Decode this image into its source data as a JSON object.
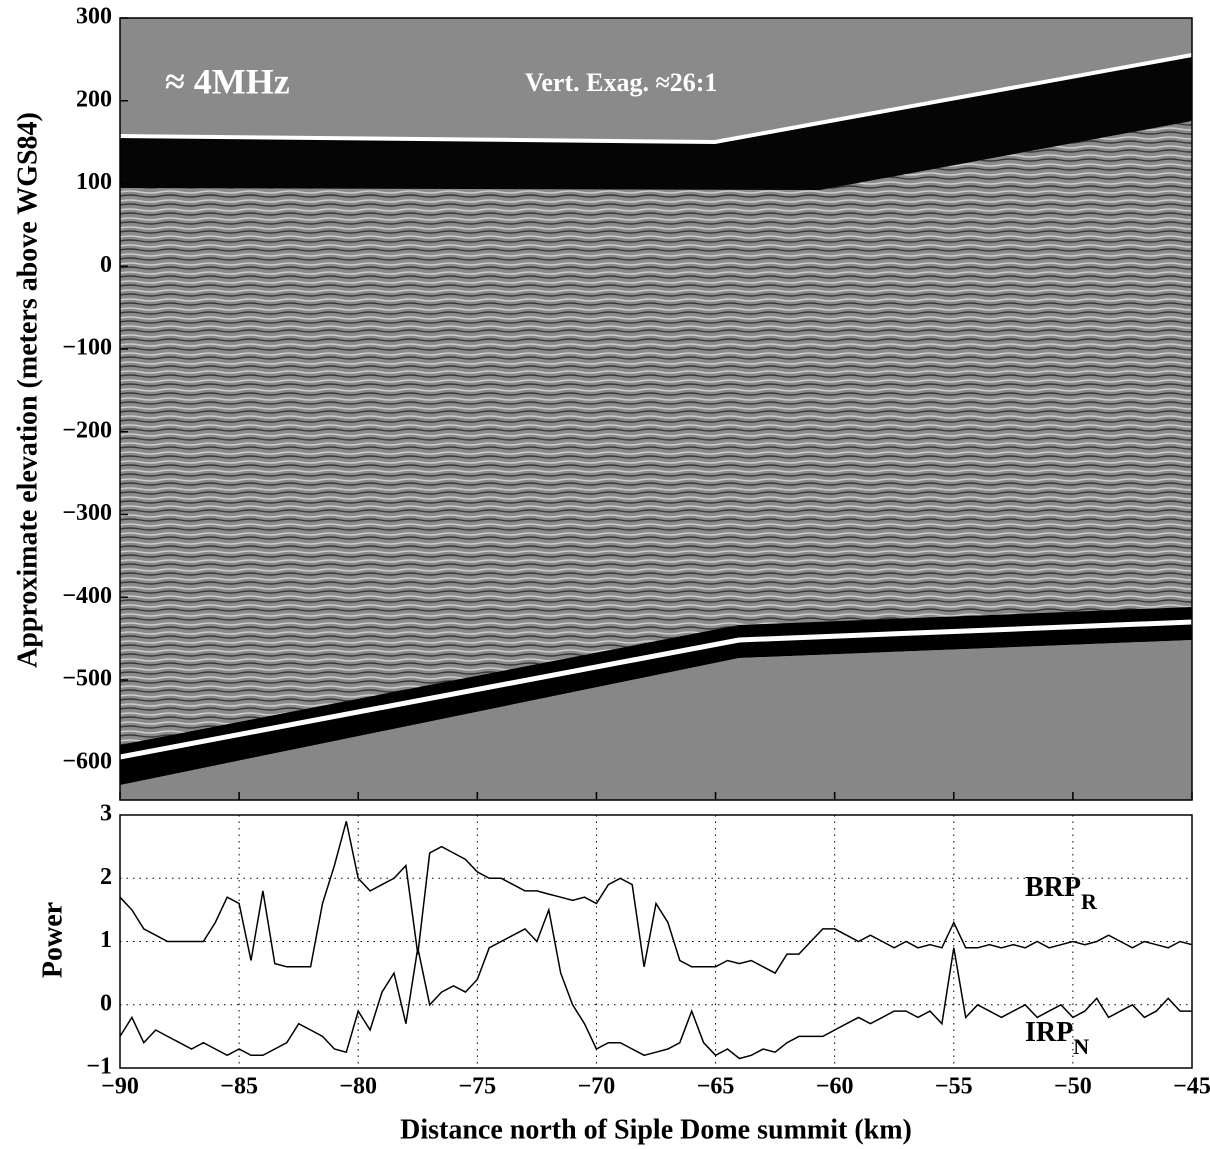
{
  "chart_data": [
    {
      "type": "image",
      "ylabel": "Approximate elevation (meters above WGS84)",
      "annotations": [
        {
          "text": "≈ 4MHz"
        },
        {
          "text": "Vert. Exag. ≈26:1"
        }
      ],
      "ylim": [
        -645,
        300
      ],
      "yticks": [
        300,
        200,
        100,
        0,
        {
          "value": -100,
          "label": "−100"
        },
        {
          "value": -200,
          "label": "−200"
        },
        {
          "value": -300,
          "label": "−300"
        },
        {
          "value": -400,
          "label": "−400"
        },
        {
          "value": -500,
          "label": "−500"
        },
        {
          "value": -600,
          "label": "−600"
        }
      ]
    },
    {
      "type": "line",
      "ylabel": "Power",
      "xlabel": "Distance north of Siple Dome summit (km)",
      "grid": true,
      "xlim": [
        -90,
        -45
      ],
      "xticks": [
        {
          "value": -90,
          "label": "−90"
        },
        {
          "value": -85,
          "label": "−85"
        },
        {
          "value": -80,
          "label": "−80"
        },
        {
          "value": -75,
          "label": "−75"
        },
        {
          "value": -70,
          "label": "−70"
        },
        {
          "value": -65,
          "label": "−65"
        },
        {
          "value": -60,
          "label": "−60"
        },
        {
          "value": -55,
          "label": "−55"
        },
        {
          "value": -50,
          "label": "−50"
        },
        {
          "value": -45,
          "label": "−45"
        }
      ],
      "ylim": [
        -1,
        3
      ],
      "yticks": [
        3,
        2,
        1,
        0,
        {
          "value": -1,
          "label": "−1"
        }
      ],
      "x": [
        -90,
        -89.5,
        -89,
        -88.5,
        -88,
        -87.5,
        -87,
        -86.5,
        -86,
        -85.5,
        -85,
        -84.5,
        -84,
        -83.5,
        -83,
        -82.5,
        -82,
        -81.5,
        -81,
        -80.5,
        -80,
        -79.5,
        -79,
        -78.5,
        -78,
        -77.5,
        -77,
        -76.5,
        -76,
        -75.5,
        -75,
        -74.5,
        -74,
        -73.5,
        -73,
        -72.5,
        -72,
        -71.5,
        -71,
        -70.5,
        -70,
        -69.5,
        -69,
        -68.5,
        -68,
        -67.5,
        -67,
        -66.5,
        -66,
        -65.5,
        -65,
        -64.5,
        -64,
        -63.5,
        -63,
        -62.5,
        -62,
        -61.5,
        -61,
        -60.5,
        -60,
        -59.5,
        -59,
        -58.5,
        -58,
        -57.5,
        -57,
        -56.5,
        -56,
        -55.5,
        -55,
        -54.5,
        -54,
        -53.5,
        -53,
        -52.5,
        -52,
        -51.5,
        -51,
        -50.5,
        -50,
        -49.5,
        -49,
        -48.5,
        -48,
        -47.5,
        -47,
        -46.5,
        -46,
        -45.5,
        -45
      ],
      "series": [
        {
          "label": {
            "text": "BRP",
            "sub": "R"
          },
          "color": "#000000",
          "values": [
            1.7,
            1.5,
            1.2,
            1.1,
            1.0,
            1.0,
            1.0,
            1.0,
            1.3,
            1.7,
            1.6,
            0.7,
            1.8,
            0.65,
            0.6,
            0.6,
            0.6,
            1.6,
            2.2,
            2.9,
            2.0,
            1.8,
            1.9,
            2.0,
            2.2,
            0.8,
            2.4,
            2.5,
            2.4,
            2.3,
            2.1,
            2.0,
            2.0,
            1.9,
            1.8,
            1.8,
            1.75,
            1.7,
            1.65,
            1.7,
            1.6,
            1.9,
            2.0,
            1.9,
            0.6,
            1.6,
            1.3,
            0.7,
            0.6,
            0.6,
            0.6,
            0.7,
            0.65,
            0.7,
            0.6,
            0.5,
            0.8,
            0.8,
            1.0,
            1.2,
            1.2,
            1.1,
            1.0,
            1.1,
            1.0,
            0.9,
            1.0,
            0.9,
            0.95,
            0.9,
            1.3,
            0.9,
            0.9,
            0.95,
            0.9,
            0.95,
            0.9,
            1.0,
            0.9,
            0.95,
            1.0,
            0.95,
            1.0,
            1.1,
            1.0,
            0.9,
            1.0,
            0.95,
            0.9,
            1.0,
            0.95
          ]
        },
        {
          "label": {
            "text": "IRP",
            "sub": "N"
          },
          "color": "#000000",
          "values": [
            -0.5,
            -0.2,
            -0.6,
            -0.4,
            -0.5,
            -0.6,
            -0.7,
            -0.6,
            -0.7,
            -0.8,
            -0.7,
            -0.8,
            -0.8,
            -0.7,
            -0.6,
            -0.3,
            -0.4,
            -0.5,
            -0.7,
            -0.75,
            -0.1,
            -0.4,
            0.2,
            0.5,
            -0.3,
            0.9,
            0.0,
            0.2,
            0.3,
            0.2,
            0.4,
            0.9,
            1.0,
            1.1,
            1.2,
            1.0,
            1.5,
            0.5,
            0.0,
            -0.3,
            -0.7,
            -0.6,
            -0.6,
            -0.7,
            -0.8,
            -0.75,
            -0.7,
            -0.6,
            -0.1,
            -0.6,
            -0.8,
            -0.7,
            -0.85,
            -0.8,
            -0.7,
            -0.75,
            -0.6,
            -0.5,
            -0.5,
            -0.5,
            -0.4,
            -0.3,
            -0.2,
            -0.3,
            -0.2,
            -0.1,
            -0.1,
            -0.2,
            -0.1,
            -0.3,
            0.9,
            -0.2,
            0.0,
            -0.1,
            -0.2,
            -0.1,
            0.0,
            -0.2,
            -0.1,
            0.0,
            -0.2,
            -0.1,
            0.1,
            -0.2,
            -0.1,
            0.0,
            -0.2,
            -0.1,
            0.1,
            -0.1,
            -0.1
          ]
        }
      ]
    }
  ]
}
